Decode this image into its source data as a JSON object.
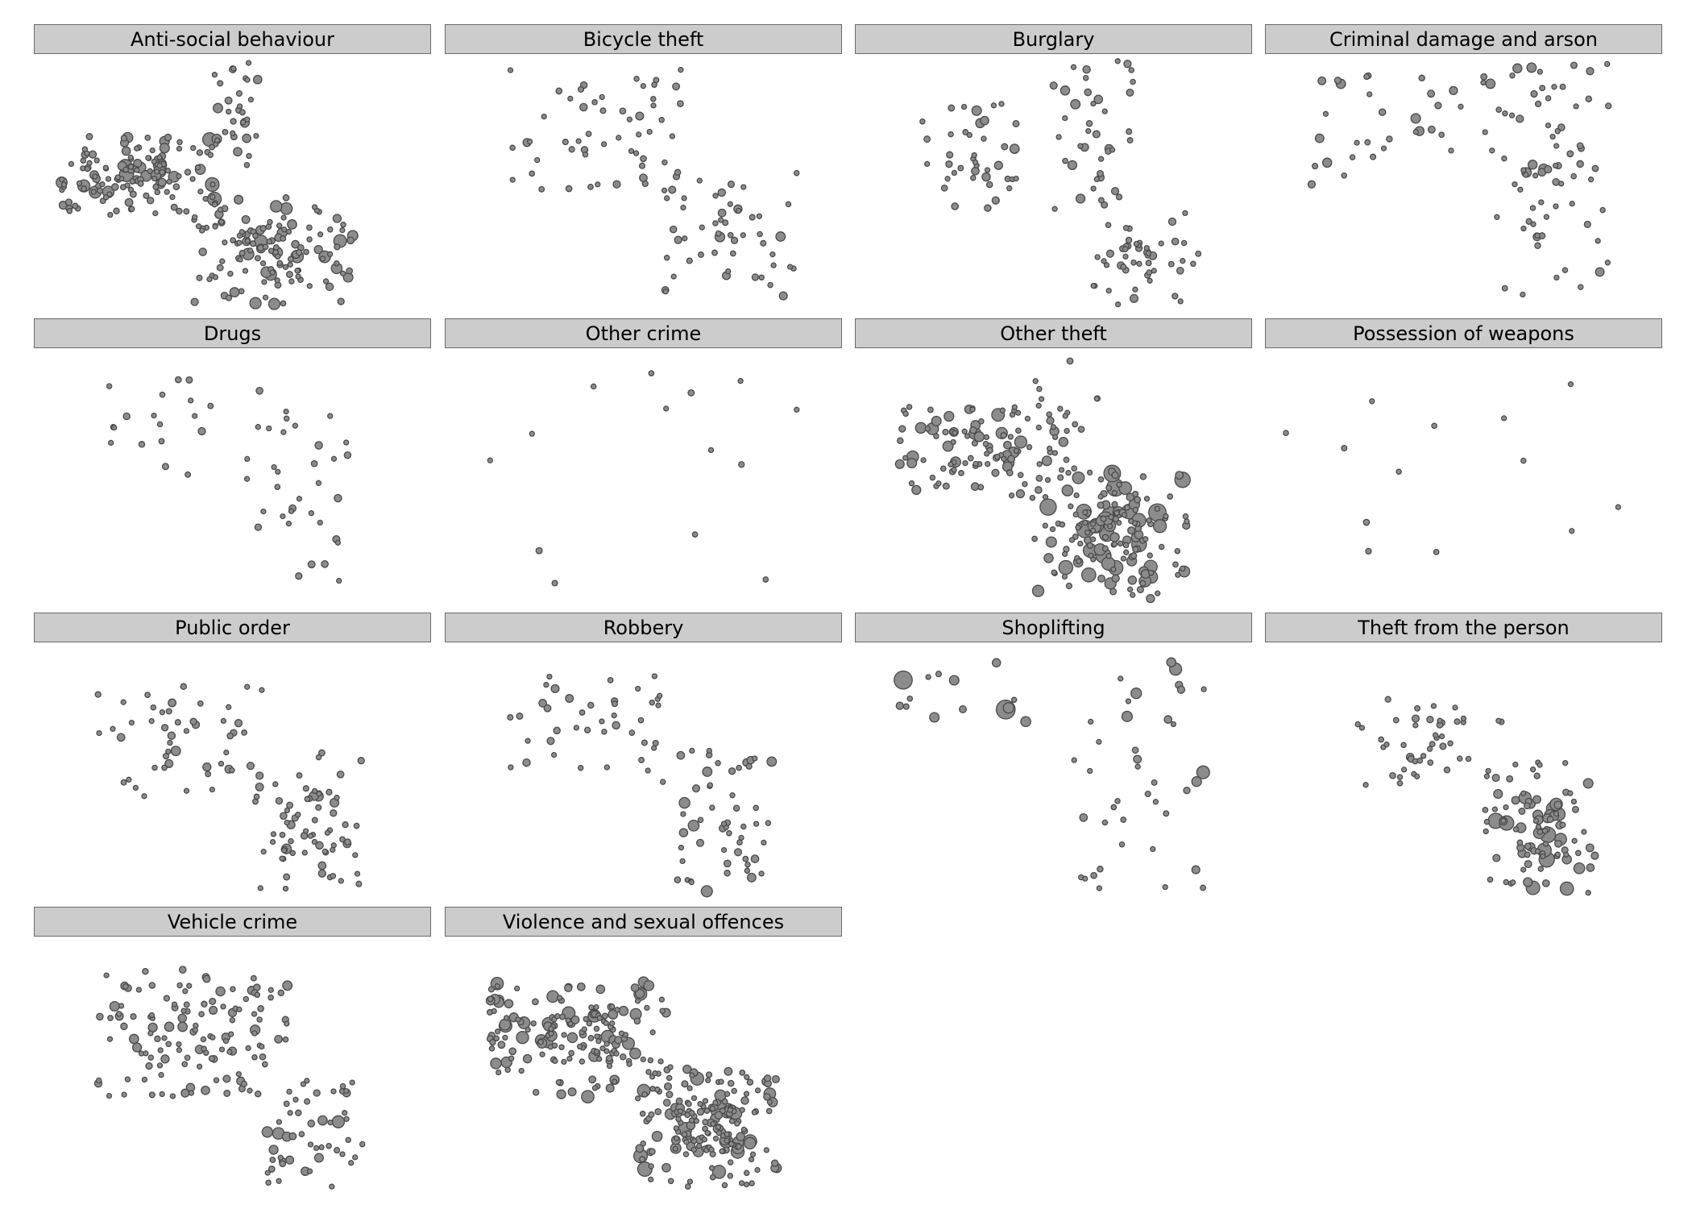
{
  "colors": {
    "point_fill": "#8c8c8c",
    "point_stroke": "#4a4a4a",
    "strip_bg": "#cccccc",
    "strip_border": "#6a6a6a"
  },
  "chart_data": {
    "type": "scatter",
    "title": "",
    "xlabel": "",
    "ylabel": "",
    "grid": false,
    "legend": "none",
    "point_size": "crime count per location (bubble area)",
    "facets": [
      {
        "name": "Anti-social behaviour",
        "clusters": [
          {
            "x": [
              0.05,
              0.47
            ],
            "y": [
              0.3,
              0.62
            ],
            "n": 140,
            "rmax": 9,
            "dense": 0.25
          },
          {
            "x": [
              0.4,
              0.82
            ],
            "y": [
              0.55,
              0.98
            ],
            "n": 130,
            "rmax": 8,
            "dense": 0.3
          },
          {
            "x": [
              0.45,
              0.58
            ],
            "y": [
              0.0,
              0.42
            ],
            "n": 30,
            "rmax": 6,
            "dense": 0.2
          }
        ]
      },
      {
        "name": "Bicycle theft",
        "clusters": [
          {
            "x": [
              0.15,
              0.6
            ],
            "y": [
              0.02,
              0.55
            ],
            "n": 55,
            "rmax": 5,
            "dense": 0.2
          },
          {
            "x": [
              0.55,
              0.9
            ],
            "y": [
              0.45,
              0.98
            ],
            "n": 50,
            "rmax": 6,
            "dense": 0.25
          }
        ]
      },
      {
        "name": "Burglary",
        "clusters": [
          {
            "x": [
              0.15,
              0.42
            ],
            "y": [
              0.15,
              0.6
            ],
            "n": 40,
            "rmax": 6,
            "dense": 0.2
          },
          {
            "x": [
              0.5,
              0.72
            ],
            "y": [
              0.0,
              0.6
            ],
            "n": 40,
            "rmax": 6,
            "dense": 0.2
          },
          {
            "x": [
              0.6,
              0.88
            ],
            "y": [
              0.6,
              0.98
            ],
            "n": 50,
            "rmax": 5,
            "dense": 0.3
          }
        ]
      },
      {
        "name": "Criminal damage and arson",
        "clusters": [
          {
            "x": [
              0.1,
              0.5
            ],
            "y": [
              0.05,
              0.5
            ],
            "n": 30,
            "rmax": 6,
            "dense": 0.2
          },
          {
            "x": [
              0.55,
              0.88
            ],
            "y": [
              0.0,
              0.98
            ],
            "n": 75,
            "rmax": 6,
            "dense": 0.2
          }
        ]
      },
      {
        "name": "Drugs",
        "clusters": [
          {
            "x": [
              0.15,
              0.45
            ],
            "y": [
              0.1,
              0.5
            ],
            "n": 18,
            "rmax": 5,
            "dense": 0.1
          },
          {
            "x": [
              0.5,
              0.8
            ],
            "y": [
              0.1,
              0.98
            ],
            "n": 35,
            "rmax": 5,
            "dense": 0.1
          }
        ]
      },
      {
        "name": "Other crime",
        "clusters": [
          {
            "x": [
              0.1,
              0.9
            ],
            "y": [
              0.0,
              0.98
            ],
            "n": 14,
            "rmax": 4,
            "dense": 0.0
          }
        ]
      },
      {
        "name": "Other theft",
        "clusters": [
          {
            "x": [
              0.1,
              0.55
            ],
            "y": [
              0.2,
              0.58
            ],
            "n": 110,
            "rmax": 8,
            "dense": 0.2
          },
          {
            "x": [
              0.45,
              0.85
            ],
            "y": [
              0.45,
              0.98
            ],
            "n": 160,
            "rmax": 11,
            "dense": 0.35
          },
          {
            "x": [
              0.45,
              0.62
            ],
            "y": [
              0.0,
              0.3
            ],
            "n": 12,
            "rmax": 4,
            "dense": 0.0
          }
        ]
      },
      {
        "name": "Possession of weapons",
        "clusters": [
          {
            "x": [
              0.02,
              0.98
            ],
            "y": [
              0.0,
              0.98
            ],
            "n": 13,
            "rmax": 4,
            "dense": 0.0
          }
        ]
      },
      {
        "name": "Public order",
        "clusters": [
          {
            "x": [
              0.15,
              0.6
            ],
            "y": [
              0.15,
              0.6
            ],
            "n": 50,
            "rmax": 6,
            "dense": 0.15
          },
          {
            "x": [
              0.55,
              0.85
            ],
            "y": [
              0.4,
              0.98
            ],
            "n": 70,
            "rmax": 6,
            "dense": 0.25
          }
        ]
      },
      {
        "name": "Robbery",
        "clusters": [
          {
            "x": [
              0.15,
              0.55
            ],
            "y": [
              0.1,
              0.5
            ],
            "n": 40,
            "rmax": 5,
            "dense": 0.1
          },
          {
            "x": [
              0.55,
              0.85
            ],
            "y": [
              0.4,
              0.98
            ],
            "n": 55,
            "rmax": 7,
            "dense": 0.2
          }
        ]
      },
      {
        "name": "Shoplifting",
        "clusters": [
          {
            "x": [
              0.1,
              0.45
            ],
            "y": [
              0.0,
              0.4
            ],
            "n": 14,
            "rmax": 14,
            "dense": 0.0
          },
          {
            "x": [
              0.55,
              0.9
            ],
            "y": [
              0.0,
              0.98
            ],
            "n": 40,
            "rmax": 9,
            "dense": 0.1
          }
        ]
      },
      {
        "name": "Theft from the person",
        "clusters": [
          {
            "x": [
              0.2,
              0.6
            ],
            "y": [
              0.2,
              0.55
            ],
            "n": 45,
            "rmax": 5,
            "dense": 0.2
          },
          {
            "x": [
              0.55,
              0.85
            ],
            "y": [
              0.45,
              0.98
            ],
            "n": 95,
            "rmax": 10,
            "dense": 0.35
          }
        ]
      },
      {
        "name": "Vehicle crime",
        "clusters": [
          {
            "x": [
              0.15,
              0.65
            ],
            "y": [
              0.1,
              0.62
            ],
            "n": 130,
            "rmax": 6,
            "dense": 0.15
          },
          {
            "x": [
              0.58,
              0.85
            ],
            "y": [
              0.55,
              0.98
            ],
            "n": 50,
            "rmax": 8,
            "dense": 0.2
          }
        ]
      },
      {
        "name": "Violence and sexual offences",
        "clusters": [
          {
            "x": [
              0.1,
              0.58
            ],
            "y": [
              0.15,
              0.62
            ],
            "n": 170,
            "rmax": 8,
            "dense": 0.25
          },
          {
            "x": [
              0.48,
              0.85
            ],
            "y": [
              0.5,
              0.98
            ],
            "n": 190,
            "rmax": 9,
            "dense": 0.35
          }
        ]
      }
    ]
  }
}
